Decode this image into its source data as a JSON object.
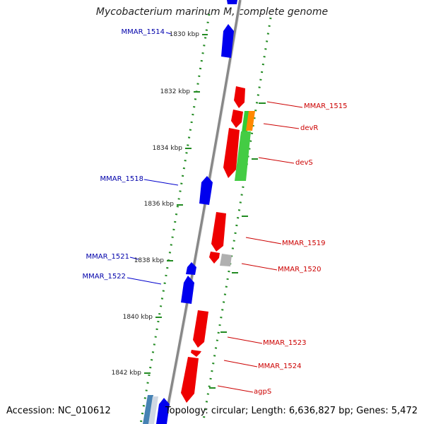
{
  "title": "Mycobacterium marinum M, complete genome",
  "footer": {
    "accession": "Accession: NC_010612",
    "summary": "Topology: circular; Length: 6,636,827 bp; Genes: 5,472"
  },
  "colors": {
    "forward_gene": "#ee0000",
    "reverse_gene": "#0000ee",
    "green_feature": "#33cc33",
    "orange_feature": "#ff8800",
    "gray_feature": "#b0b0b0",
    "steel_feature": "#4682b4",
    "backbone": "#999999",
    "tick": "#228b22",
    "label_forward": "#cc0000",
    "label_reverse": "#0000aa"
  },
  "ticks": [
    "1830 kbp",
    "1832 kbp",
    "1834 kbp",
    "1836 kbp",
    "1838 kbp",
    "1840 kbp",
    "1842 kbp"
  ],
  "genes_forward": [
    {
      "label": "MMAR_1515"
    },
    {
      "label": "devR"
    },
    {
      "label": "devS"
    },
    {
      "label": "MMAR_1519"
    },
    {
      "label": "MMAR_1520"
    },
    {
      "label": "MMAR_1523"
    },
    {
      "label": "MMAR_1524"
    },
    {
      "label": "agpS"
    }
  ],
  "genes_reverse": [
    {
      "label": "MMAR_1514"
    },
    {
      "label": "MMAR_1518"
    },
    {
      "label": "MMAR_1521"
    },
    {
      "label": "MMAR_1522"
    }
  ]
}
